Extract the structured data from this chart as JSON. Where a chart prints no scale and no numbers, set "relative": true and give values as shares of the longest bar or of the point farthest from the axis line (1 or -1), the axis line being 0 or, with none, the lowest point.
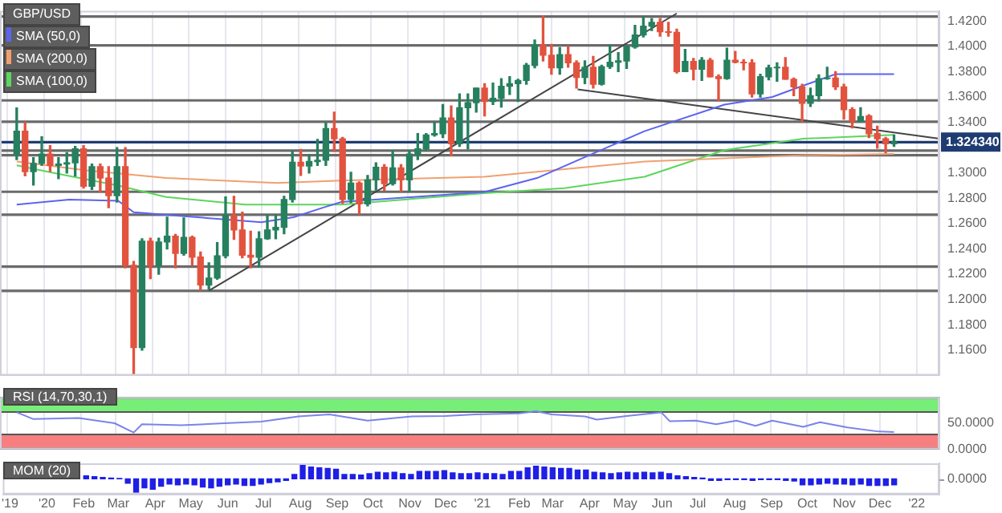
{
  "chart_data": [
    {
      "type": "candlestick",
      "title": "GBP/USD",
      "legend": "top left",
      "grid": "x",
      "tick_labels": "y",
      "xlim": [
        "2019-11-25",
        "2022-01-20"
      ],
      "xticks": [
        {
          "value": "2019-12-01",
          "label": null
        },
        {
          "value": "2020-01-01",
          "label": null
        },
        {
          "value": "2020-02-01",
          "label": null
        },
        {
          "value": "2020-03-01",
          "label": null
        },
        {
          "value": "2020-04-01",
          "label": null
        },
        {
          "value": "2020-05-01",
          "label": null
        },
        {
          "value": "2020-06-01",
          "label": null
        },
        {
          "value": "2020-07-01",
          "label": null
        },
        {
          "value": "2020-08-01",
          "label": null
        },
        {
          "value": "2020-09-01",
          "label": null
        },
        {
          "value": "2020-10-01",
          "label": null
        },
        {
          "value": "2020-11-01",
          "label": null
        },
        {
          "value": "2020-12-01",
          "label": null
        },
        {
          "value": "2021-01-01",
          "label": null
        },
        {
          "value": "2021-02-01",
          "label": null
        },
        {
          "value": "2021-03-01",
          "label": null
        },
        {
          "value": "2021-04-01",
          "label": null
        },
        {
          "value": "2021-05-01",
          "label": null
        },
        {
          "value": "2021-06-01",
          "label": null
        },
        {
          "value": "2021-07-01",
          "label": null
        },
        {
          "value": "2021-08-01",
          "label": null
        },
        {
          "value": "2021-09-01",
          "label": null
        },
        {
          "value": "2021-10-01",
          "label": null
        },
        {
          "value": "2021-11-01",
          "label": null
        },
        {
          "value": "2021-12-01",
          "label": null
        },
        {
          "value": "2022-01-01",
          "label": null
        }
      ],
      "ylim": [
        1.14,
        1.428
      ],
      "yticks": [
        {
          "value": 1.16,
          "label": "1.1600"
        },
        {
          "value": 1.18,
          "label": "1.1800"
        },
        {
          "value": 1.2,
          "label": "1.2000"
        },
        {
          "value": 1.22,
          "label": "1.2200"
        },
        {
          "value": 1.24,
          "label": "1.2400"
        },
        {
          "value": 1.26,
          "label": "1.2600"
        },
        {
          "value": 1.28,
          "label": "1.2800"
        },
        {
          "value": 1.3,
          "label": "1.3000"
        },
        {
          "value": 1.34,
          "label": "1.3400"
        },
        {
          "value": 1.36,
          "label": "1.3600"
        },
        {
          "value": 1.38,
          "label": "1.3800"
        },
        {
          "value": 1.4,
          "label": "1.4000"
        },
        {
          "value": 1.42,
          "label": "1.4200"
        }
      ],
      "x": [
        "2019-12-09",
        "2019-12-16",
        "2019-12-23",
        "2019-12-30",
        "2020-01-06",
        "2020-01-13",
        "2020-01-20",
        "2020-01-27",
        "2020-02-03",
        "2020-02-10",
        "2020-02-17",
        "2020-02-24",
        "2020-03-02",
        "2020-03-09",
        "2020-03-16",
        "2020-03-23",
        "2020-03-30",
        "2020-04-06",
        "2020-04-13",
        "2020-04-20",
        "2020-04-27",
        "2020-05-04",
        "2020-05-11",
        "2020-05-18",
        "2020-05-25",
        "2020-06-01",
        "2020-06-08",
        "2020-06-15",
        "2020-06-22",
        "2020-06-29",
        "2020-07-06",
        "2020-07-13",
        "2020-07-20",
        "2020-07-27",
        "2020-08-03",
        "2020-08-10",
        "2020-08-17",
        "2020-08-24",
        "2020-08-31",
        "2020-09-07",
        "2020-09-14",
        "2020-09-21",
        "2020-09-28",
        "2020-10-05",
        "2020-10-12",
        "2020-10-19",
        "2020-10-26",
        "2020-11-02",
        "2020-11-09",
        "2020-11-16",
        "2020-11-23",
        "2020-11-30",
        "2020-12-07",
        "2020-12-14",
        "2020-12-21",
        "2020-12-28",
        "2021-01-04",
        "2021-01-11",
        "2021-01-18",
        "2021-01-25",
        "2021-02-01",
        "2021-02-08",
        "2021-02-15",
        "2021-02-22",
        "2021-03-01",
        "2021-03-08",
        "2021-03-15",
        "2021-03-22",
        "2021-03-29",
        "2021-04-05",
        "2021-04-12",
        "2021-04-19",
        "2021-04-26",
        "2021-05-03",
        "2021-05-10",
        "2021-05-17",
        "2021-05-24",
        "2021-05-31",
        "2021-06-07",
        "2021-06-14",
        "2021-06-21",
        "2021-06-28",
        "2021-07-05",
        "2021-07-12",
        "2021-07-19",
        "2021-07-26",
        "2021-08-02",
        "2021-08-09",
        "2021-08-16",
        "2021-08-23",
        "2021-08-30",
        "2021-09-06",
        "2021-09-13",
        "2021-09-20",
        "2021-09-27",
        "2021-10-04",
        "2021-10-11",
        "2021-10-18",
        "2021-10-25",
        "2021-11-01",
        "2021-11-08",
        "2021-11-15",
        "2021-11-22",
        "2021-11-29",
        "2021-12-06",
        "2021-12-13"
      ],
      "ohlc": [
        [
          1.315,
          1.3514,
          1.3106,
          1.333
        ],
        [
          1.333,
          1.34,
          1.2977,
          1.301
        ],
        [
          1.301,
          1.312,
          1.2905,
          1.3075
        ],
        [
          1.3075,
          1.3285,
          1.306,
          1.315
        ],
        [
          1.315,
          1.3215,
          1.3012,
          1.306
        ],
        [
          1.306,
          1.312,
          1.2955,
          1.307
        ],
        [
          1.307,
          1.316,
          1.3,
          1.308
        ],
        [
          1.308,
          1.321,
          1.2975,
          1.319
        ],
        [
          1.319,
          1.3215,
          1.288,
          1.2895
        ],
        [
          1.2895,
          1.307,
          1.287,
          1.305
        ],
        [
          1.305,
          1.307,
          1.285,
          1.296
        ],
        [
          1.296,
          1.305,
          1.2725,
          1.282
        ],
        [
          1.282,
          1.32,
          1.277,
          1.305
        ],
        [
          1.305,
          1.32,
          1.225,
          1.227
        ],
        [
          1.227,
          1.23,
          1.141,
          1.162
        ],
        [
          1.162,
          1.248,
          1.16,
          1.246
        ],
        [
          1.246,
          1.2485,
          1.2165,
          1.227
        ],
        [
          1.227,
          1.2485,
          1.22,
          1.2455
        ],
        [
          1.2455,
          1.265,
          1.24,
          1.25
        ],
        [
          1.25,
          1.2515,
          1.225,
          1.2365
        ],
        [
          1.2365,
          1.2645,
          1.235,
          1.249
        ],
        [
          1.249,
          1.25,
          1.227,
          1.2335
        ],
        [
          1.2335,
          1.2375,
          1.2075,
          1.2115
        ],
        [
          1.2115,
          1.229,
          1.208,
          1.217
        ],
        [
          1.217,
          1.245,
          1.216,
          1.2345
        ],
        [
          1.2345,
          1.281,
          1.233,
          1.2665
        ],
        [
          1.2665,
          1.2815,
          1.2475,
          1.255
        ],
        [
          1.255,
          1.269,
          1.233,
          1.235
        ],
        [
          1.235,
          1.254,
          1.225,
          1.2335
        ],
        [
          1.2335,
          1.2535,
          1.2255,
          1.248
        ],
        [
          1.248,
          1.267,
          1.2475,
          1.255
        ],
        [
          1.255,
          1.267,
          1.248,
          1.257
        ],
        [
          1.257,
          1.2815,
          1.252,
          1.279
        ],
        [
          1.279,
          1.317,
          1.277,
          1.3085
        ],
        [
          1.3085,
          1.3185,
          1.298,
          1.3055
        ],
        [
          1.3055,
          1.3145,
          1.3,
          1.309
        ],
        [
          1.309,
          1.3265,
          1.306,
          1.31
        ],
        [
          1.31,
          1.3395,
          1.306,
          1.335
        ],
        [
          1.335,
          1.348,
          1.317,
          1.327
        ],
        [
          1.327,
          1.328,
          1.276,
          1.279
        ],
        [
          1.279,
          1.3005,
          1.2765,
          1.292
        ],
        [
          1.292,
          1.293,
          1.2675,
          1.2755
        ],
        [
          1.2755,
          1.298,
          1.274,
          1.2945
        ],
        [
          1.2945,
          1.308,
          1.2865,
          1.3045
        ],
        [
          1.3045,
          1.3065,
          1.286,
          1.2915
        ],
        [
          1.2915,
          1.3175,
          1.2905,
          1.304
        ],
        [
          1.304,
          1.3065,
          1.2855,
          1.2945
        ],
        [
          1.2945,
          1.3175,
          1.2855,
          1.315
        ],
        [
          1.315,
          1.331,
          1.3105,
          1.319
        ],
        [
          1.319,
          1.331,
          1.3175,
          1.33
        ],
        [
          1.33,
          1.34,
          1.329,
          1.331
        ],
        [
          1.331,
          1.354,
          1.328,
          1.3435
        ],
        [
          1.3435,
          1.353,
          1.3135,
          1.323
        ],
        [
          1.323,
          1.3625,
          1.321,
          1.3515
        ],
        [
          1.3515,
          1.3625,
          1.319,
          1.3555
        ],
        [
          1.3555,
          1.367,
          1.348,
          1.367
        ],
        [
          1.367,
          1.3705,
          1.345,
          1.3565
        ],
        [
          1.3565,
          1.371,
          1.354,
          1.359
        ],
        [
          1.359,
          1.3745,
          1.352,
          1.3685
        ],
        [
          1.3685,
          1.376,
          1.362,
          1.3705
        ],
        [
          1.3705,
          1.374,
          1.3565,
          1.373
        ],
        [
          1.373,
          1.3865,
          1.37,
          1.385
        ],
        [
          1.385,
          1.405,
          1.383,
          1.401
        ],
        [
          1.401,
          1.424,
          1.3885,
          1.393
        ],
        [
          1.393,
          1.4015,
          1.378,
          1.383
        ],
        [
          1.383,
          1.399,
          1.378,
          1.3935
        ],
        [
          1.3935,
          1.4,
          1.3835,
          1.387
        ],
        [
          1.387,
          1.3885,
          1.367,
          1.3755
        ],
        [
          1.3755,
          1.3885,
          1.3705,
          1.3835
        ],
        [
          1.3835,
          1.392,
          1.367,
          1.37
        ],
        [
          1.37,
          1.385,
          1.3695,
          1.384
        ],
        [
          1.384,
          1.401,
          1.3825,
          1.3875
        ],
        [
          1.3875,
          1.395,
          1.38,
          1.3885
        ],
        [
          1.3885,
          1.4005,
          1.3825,
          1.3995
        ],
        [
          1.3995,
          1.4165,
          1.3985,
          1.409
        ],
        [
          1.409,
          1.4235,
          1.4075,
          1.416
        ],
        [
          1.416,
          1.422,
          1.4125,
          1.419
        ],
        [
          1.419,
          1.422,
          1.408,
          1.4115
        ],
        [
          1.4115,
          1.419,
          1.408,
          1.411
        ],
        [
          1.411,
          1.4135,
          1.379,
          1.38
        ],
        [
          1.38,
          1.3975,
          1.38,
          1.388
        ],
        [
          1.388,
          1.3905,
          1.3735,
          1.382
        ],
        [
          1.382,
          1.391,
          1.373,
          1.389
        ],
        [
          1.389,
          1.3905,
          1.376,
          1.376
        ],
        [
          1.376,
          1.3775,
          1.357,
          1.3745
        ],
        [
          1.3745,
          1.3985,
          1.374,
          1.389
        ],
        [
          1.389,
          1.396,
          1.387,
          1.3875
        ],
        [
          1.3875,
          1.3895,
          1.3815,
          1.387
        ],
        [
          1.387,
          1.3895,
          1.36,
          1.3625
        ],
        [
          1.3625,
          1.378,
          1.36,
          1.376
        ],
        [
          1.376,
          1.385,
          1.3735,
          1.383
        ],
        [
          1.383,
          1.387,
          1.3725,
          1.3835
        ],
        [
          1.3835,
          1.391,
          1.374,
          1.374
        ],
        [
          1.374,
          1.375,
          1.361,
          1.368
        ],
        [
          1.368,
          1.37,
          1.341,
          1.355
        ],
        [
          1.355,
          1.367,
          1.3525,
          1.361
        ],
        [
          1.361,
          1.3775,
          1.357,
          1.3745
        ],
        [
          1.3745,
          1.3835,
          1.374,
          1.375
        ],
        [
          1.375,
          1.38,
          1.366,
          1.368
        ],
        [
          1.368,
          1.37,
          1.3425,
          1.35
        ],
        [
          1.35,
          1.3515,
          1.3355,
          1.341
        ],
        [
          1.341,
          1.3515,
          1.3405,
          1.3445
        ],
        [
          1.345,
          1.346,
          1.328,
          1.331
        ],
        [
          1.331,
          1.337,
          1.3195,
          1.327
        ],
        [
          1.327,
          1.328,
          1.316,
          1.323
        ],
        [
          1.323,
          1.33,
          1.321,
          1.3243
        ]
      ],
      "colors": [
        "#26805f",
        "#e2533f",
        "#26805f",
        "#26805f",
        "#e2533f",
        "#26805f",
        "#26805f",
        "#26805f",
        "#e2533f",
        "#26805f",
        "#e2533f",
        "#e2533f",
        "#26805f",
        "#e2533f",
        "#e2533f",
        "#26805f",
        "#e2533f",
        "#26805f",
        "#26805f",
        "#e2533f",
        "#26805f",
        "#e2533f",
        "#e2533f",
        "#26805f",
        "#26805f",
        "#26805f",
        "#e2533f",
        "#e2533f",
        "#e2533f",
        "#26805f",
        "#26805f",
        "#26805f",
        "#26805f",
        "#26805f",
        "#e2533f",
        "#26805f",
        "#26805f",
        "#26805f",
        "#e2533f",
        "#e2533f",
        "#26805f",
        "#e2533f",
        "#26805f",
        "#26805f",
        "#e2533f",
        "#26805f",
        "#e2533f",
        "#26805f",
        "#26805f",
        "#26805f",
        "#26805f",
        "#26805f",
        "#e2533f",
        "#26805f",
        "#26805f",
        "#26805f",
        "#e2533f",
        "#26805f",
        "#26805f",
        "#26805f",
        "#26805f",
        "#26805f",
        "#26805f",
        "#e2533f",
        "#e2533f",
        "#26805f",
        "#e2533f",
        "#e2533f",
        "#26805f",
        "#e2533f",
        "#26805f",
        "#26805f",
        "#26805f",
        "#26805f",
        "#26805f",
        "#26805f",
        "#26805f",
        "#e2533f",
        "#e2533f",
        "#e2533f",
        "#26805f",
        "#e2533f",
        "#26805f",
        "#e2533f",
        "#e2533f",
        "#26805f",
        "#e2533f",
        "#e2533f",
        "#e2533f",
        "#26805f",
        "#26805f",
        "#26805f",
        "#e2533f",
        "#e2533f",
        "#e2533f",
        "#26805f",
        "#26805f",
        "#26805f",
        "#e2533f",
        "#e2533f",
        "#e2533f",
        "#26805f",
        "#e2533f",
        "#e2533f",
        "#e2533f",
        "#26805f"
      ],
      "series": [
        {
          "name": "SMA (50,0)",
          "type": "line",
          "color": "#5a64f0",
          "x": [
            "2019-12-09",
            "2020-01-22",
            "2020-03-03",
            "2020-03-16",
            "2020-04-25",
            "2020-07-01",
            "2020-07-28",
            "2020-08-23",
            "2020-09-06",
            "2021-01-04",
            "2021-02-17",
            "2021-04-04",
            "2021-05-18",
            "2021-07-24",
            "2021-09-02",
            "2021-09-28",
            "2021-10-25",
            "2021-12-13"
          ],
          "values": [
            1.275,
            1.279,
            1.278,
            1.269,
            1.266,
            1.261,
            1.265,
            1.273,
            1.277,
            1.285,
            1.296,
            1.315,
            1.333,
            1.354,
            1.36,
            1.369,
            1.378,
            1.378
          ]
        },
        {
          "name": "SMA (200,0)",
          "type": "line",
          "color": "#f0a070",
          "x": [
            "2019-12-09",
            "2020-02-05",
            "2020-04-12",
            "2020-07-14",
            "2020-09-06",
            "2021-01-04",
            "2021-05-18",
            "2021-09-28",
            "2021-12-13"
          ],
          "values": [
            1.309,
            1.302,
            1.296,
            1.292,
            1.294,
            1.297,
            1.309,
            1.314,
            1.315
          ]
        },
        {
          "name": "SMA (100,0)",
          "type": "line",
          "color": "#5cd65c",
          "x": [
            "2019-12-09",
            "2020-01-09",
            "2020-03-03",
            "2020-04-12",
            "2020-06-17",
            "2020-09-06",
            "2021-01-04",
            "2021-03-12",
            "2021-05-18",
            "2021-07-24",
            "2021-09-28",
            "2021-12-13"
          ],
          "values": [
            1.306,
            1.3,
            1.29,
            1.281,
            1.275,
            1.275,
            1.284,
            1.288,
            1.297,
            1.318,
            1.327,
            1.33
          ]
        },
        {
          "type": "line",
          "color": "#444444",
          "x": [
            "2020-05-18",
            "2021-06-14"
          ],
          "values": [
            1.207,
            1.426
          ]
        },
        {
          "type": "line",
          "color": "#444444",
          "x": [
            "2021-03-23",
            "2022-01-20"
          ],
          "values": [
            1.366,
            1.327
          ]
        }
      ],
      "ref_lines": [
        {
          "axis": "y",
          "value": 1.4236,
          "color": "#6a6a6a"
        },
        {
          "axis": "y",
          "value": 1.4007,
          "color": "#6a6a6a"
        },
        {
          "axis": "y",
          "value": 1.3573,
          "color": "#6a6a6a"
        },
        {
          "axis": "y",
          "value": 1.3405,
          "color": "#6a6a6a"
        },
        {
          "axis": "y",
          "value": 1.3176,
          "color": "#6a6a6a"
        },
        {
          "axis": "y",
          "value": 1.314,
          "color": "#6a6a6a"
        },
        {
          "axis": "y",
          "value": 1.2851,
          "color": "#6a6a6a"
        },
        {
          "axis": "y",
          "value": 1.267,
          "color": "#6a6a6a"
        },
        {
          "axis": "y",
          "value": 1.226,
          "color": "#6a6a6a"
        },
        {
          "axis": "y",
          "value": 1.2068,
          "color": "#6a6a6a"
        },
        {
          "axis": "y",
          "value": 1.32434,
          "label": "1.324340",
          "color": "#1f3c72"
        }
      ]
    },
    {
      "type": "line",
      "title": "RSI (14,70,30,1)",
      "grid": "x",
      "tick_labels": "y",
      "xlim": [
        "2019-11-25",
        "2022-01-20"
      ],
      "xticks": [
        {
          "value": "2019-12-01",
          "label": null
        },
        {
          "value": "2020-01-01",
          "label": null
        },
        {
          "value": "2020-02-01",
          "label": null
        },
        {
          "value": "2020-03-01",
          "label": null
        },
        {
          "value": "2020-04-01",
          "label": null
        },
        {
          "value": "2020-05-01",
          "label": null
        },
        {
          "value": "2020-06-01",
          "label": null
        },
        {
          "value": "2020-07-01",
          "label": null
        },
        {
          "value": "2020-08-01",
          "label": null
        },
        {
          "value": "2020-09-01",
          "label": null
        },
        {
          "value": "2020-10-01",
          "label": null
        },
        {
          "value": "2020-11-01",
          "label": null
        },
        {
          "value": "2020-12-01",
          "label": null
        },
        {
          "value": "2021-01-01",
          "label": null
        },
        {
          "value": "2021-02-01",
          "label": null
        },
        {
          "value": "2021-03-01",
          "label": null
        },
        {
          "value": "2021-04-01",
          "label": null
        },
        {
          "value": "2021-05-01",
          "label": null
        },
        {
          "value": "2021-06-01",
          "label": null
        },
        {
          "value": "2021-07-01",
          "label": null
        },
        {
          "value": "2021-08-01",
          "label": null
        },
        {
          "value": "2021-09-01",
          "label": null
        },
        {
          "value": "2021-10-01",
          "label": null
        },
        {
          "value": "2021-11-01",
          "label": null
        },
        {
          "value": "2021-12-01",
          "label": null
        },
        {
          "value": "2022-01-01",
          "label": null
        }
      ],
      "ylim": [
        0,
        100
      ],
      "yticks": [
        {
          "value": 0,
          "label": "0.0000"
        },
        {
          "value": 50,
          "label": "50.0000"
        }
      ],
      "bands": [
        {
          "axis": "y",
          "from": 70,
          "to": 100,
          "color": "#77ee77"
        },
        {
          "axis": "y",
          "from": 0,
          "to": 30,
          "color": "#f77f7f"
        }
      ],
      "series": [
        {
          "color": "#7a84ea",
          "x": [
            "2019-12-09",
            "2019-12-23",
            "2020-01-30",
            "2020-02-29",
            "2020-03-16",
            "2020-03-23",
            "2020-04-25",
            "2020-05-31",
            "2020-07-01",
            "2020-08-01",
            "2020-08-27",
            "2020-09-28",
            "2020-11-04",
            "2020-12-02",
            "2020-12-27",
            "2021-02-02",
            "2021-02-16",
            "2021-03-01",
            "2021-03-29",
            "2021-04-08",
            "2021-05-03",
            "2021-06-01",
            "2021-06-08",
            "2021-06-30",
            "2021-07-17",
            "2021-08-03",
            "2021-08-19",
            "2021-09-02",
            "2021-09-28",
            "2021-10-12",
            "2021-11-04",
            "2021-11-30",
            "2021-12-13"
          ],
          "values": [
            71,
            58,
            60,
            50,
            32,
            48,
            46,
            50,
            53,
            63,
            67,
            55,
            63,
            64,
            67,
            69,
            73,
            67,
            63,
            57,
            64,
            71,
            54,
            55,
            48,
            55,
            45,
            55,
            43,
            52,
            42,
            34,
            33
          ]
        }
      ]
    },
    {
      "type": "bar",
      "title": "MOM (20)",
      "relative": true,
      "tick_labels": "x",
      "annotations": [
        "0.0000"
      ],
      "xlim": [
        "2019-11-25",
        "2022-01-20"
      ],
      "xticks": [
        {
          "value": "2019-12-01",
          "label": "'19"
        },
        {
          "value": "2020-01-01",
          "label": "'20"
        },
        {
          "value": "2020-02-01",
          "label": "Feb"
        },
        {
          "value": "2020-03-01",
          "label": "Mar"
        },
        {
          "value": "2020-04-01",
          "label": "Apr"
        },
        {
          "value": "2020-05-01",
          "label": "May"
        },
        {
          "value": "2020-06-01",
          "label": "Jun"
        },
        {
          "value": "2020-07-01",
          "label": "Jul"
        },
        {
          "value": "2020-08-01",
          "label": "Aug"
        },
        {
          "value": "2020-09-01",
          "label": "Sep"
        },
        {
          "value": "2020-10-01",
          "label": "Oct"
        },
        {
          "value": "2020-11-01",
          "label": "Nov"
        },
        {
          "value": "2020-12-01",
          "label": "Dec"
        },
        {
          "value": "2021-01-01",
          "label": "'21"
        },
        {
          "value": "2021-02-01",
          "label": "Feb"
        },
        {
          "value": "2021-03-01",
          "label": "Mar"
        },
        {
          "value": "2021-04-01",
          "label": "Apr"
        },
        {
          "value": "2021-05-01",
          "label": "May"
        },
        {
          "value": "2021-06-01",
          "label": "Jun"
        },
        {
          "value": "2021-07-01",
          "label": "Jul"
        },
        {
          "value": "2021-08-01",
          "label": "Aug"
        },
        {
          "value": "2021-09-01",
          "label": "Sep"
        },
        {
          "value": "2021-10-01",
          "label": "Oct"
        },
        {
          "value": "2021-11-01",
          "label": "Nov"
        },
        {
          "value": "2021-12-01",
          "label": "Dec"
        },
        {
          "value": "2022-01-01",
          "label": "'22"
        }
      ],
      "x": [
        "2020-02-03",
        "2020-02-10",
        "2020-02-17",
        "2020-02-24",
        "2020-03-02",
        "2020-03-09",
        "2020-03-16",
        "2020-03-23",
        "2020-03-30",
        "2020-04-06",
        "2020-04-13",
        "2020-04-20",
        "2020-04-27",
        "2020-05-04",
        "2020-05-11",
        "2020-05-18",
        "2020-05-25",
        "2020-06-01",
        "2020-06-08",
        "2020-06-15",
        "2020-06-22",
        "2020-06-29",
        "2020-07-06",
        "2020-07-13",
        "2020-07-20",
        "2020-07-27",
        "2020-08-03",
        "2020-08-10",
        "2020-08-17",
        "2020-08-24",
        "2020-08-31",
        "2020-09-07",
        "2020-09-14",
        "2020-09-21",
        "2020-09-28",
        "2020-10-05",
        "2020-10-12",
        "2020-10-19",
        "2020-10-26",
        "2020-11-02",
        "2020-11-09",
        "2020-11-16",
        "2020-11-23",
        "2020-11-30",
        "2020-12-07",
        "2020-12-14",
        "2020-12-21",
        "2020-12-28",
        "2021-01-04",
        "2021-01-11",
        "2021-01-18",
        "2021-01-25",
        "2021-02-01",
        "2021-02-08",
        "2021-02-15",
        "2021-02-22",
        "2021-03-01",
        "2021-03-08",
        "2021-03-15",
        "2021-03-22",
        "2021-03-29",
        "2021-04-05",
        "2021-04-12",
        "2021-04-19",
        "2021-04-26",
        "2021-05-03",
        "2021-05-10",
        "2021-05-17",
        "2021-05-24",
        "2021-05-31",
        "2021-06-07",
        "2021-06-14",
        "2021-06-21",
        "2021-06-28",
        "2021-07-05",
        "2021-07-12",
        "2021-07-19",
        "2021-07-26",
        "2021-08-02",
        "2021-08-09",
        "2021-08-16",
        "2021-08-23",
        "2021-08-30",
        "2021-09-06",
        "2021-09-13",
        "2021-09-20",
        "2021-09-27",
        "2021-10-04",
        "2021-10-11",
        "2021-10-18",
        "2021-10-25",
        "2021-11-01",
        "2021-11-08",
        "2021-11-15",
        "2021-11-22",
        "2021-11-29",
        "2021-12-06",
        "2021-12-13"
      ],
      "series": [
        {
          "color": "#1f1fe6",
          "values": [
            0.2,
            0.15,
            0.1,
            0.05,
            0.02,
            -0.3,
            -0.9,
            -0.6,
            -0.7,
            -0.5,
            -0.35,
            -0.4,
            -0.35,
            -0.4,
            -0.55,
            -0.6,
            -0.5,
            -0.4,
            -0.35,
            -0.45,
            -0.45,
            -0.35,
            -0.25,
            -0.2,
            -0.1,
            0.3,
            1,
            0.8,
            0.75,
            0.7,
            0.65,
            0.3,
            0.3,
            0.25,
            0.35,
            0.45,
            0.4,
            0.45,
            0.35,
            0.3,
            0.5,
            0.5,
            0.5,
            0.55,
            0.4,
            0.35,
            0.35,
            0.4,
            0.35,
            0.35,
            0.3,
            0.5,
            0.5,
            0.75,
            0.85,
            0.8,
            0.75,
            0.7,
            0.7,
            0.6,
            0.6,
            0.45,
            0.4,
            0.35,
            0.4,
            0.45,
            0.4,
            0.45,
            0.4,
            0.45,
            0.35,
            0.2,
            0.15,
            0.1,
            0.05,
            -0.1,
            -0.1,
            -0.05,
            -0.05,
            -0.05,
            -0.1,
            -0.05,
            -0.05,
            -0.05,
            -0.1,
            -0.15,
            -0.4,
            -0.4,
            -0.35,
            -0.3,
            -0.35,
            -0.35,
            -0.4,
            -0.35,
            -0.45,
            -0.45,
            -0.45,
            -0.4
          ]
        }
      ]
    }
  ]
}
